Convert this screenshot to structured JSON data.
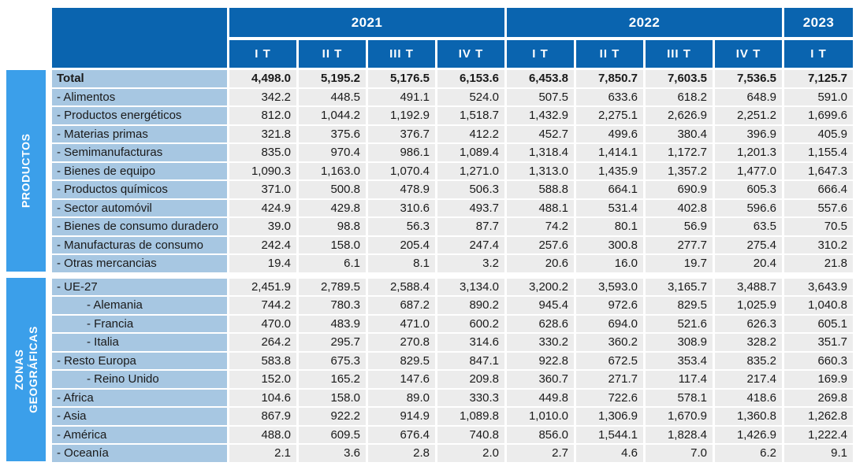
{
  "colors": {
    "header_bg": "#0a64af",
    "sidebar_bg": "#3b9fea",
    "label_bg": "#a7c7e2",
    "cell_bg": "#ececec",
    "text": "#1a1a1a",
    "header_text": "#ffffff"
  },
  "table": {
    "header": {
      "corner_label": "",
      "year_groups": [
        {
          "label": "2021",
          "span": 4
        },
        {
          "label": "2022",
          "span": 4
        },
        {
          "label": "2023",
          "span": 1
        }
      ],
      "quarters": [
        "I T",
        "II T",
        "III T",
        "IV T",
        "I T",
        "II T",
        "III T",
        "IV T",
        "I T"
      ]
    },
    "sections": [
      {
        "name": "PRODUCTOS",
        "rows": [
          {
            "label": "Total",
            "bold": true,
            "indent": 0,
            "values": [
              "4,498.0",
              "5,195.2",
              "5,176.5",
              "6,153.6",
              "6,453.8",
              "7,850.7",
              "7,603.5",
              "7,536.5",
              "7,125.7"
            ]
          },
          {
            "label": "- Alimentos",
            "bold": false,
            "indent": 1,
            "values": [
              "342.2",
              "448.5",
              "491.1",
              "524.0",
              "507.5",
              "633.6",
              "618.2",
              "648.9",
              "591.0"
            ]
          },
          {
            "label": "- Productos energéticos",
            "bold": false,
            "indent": 1,
            "values": [
              "812.0",
              "1,044.2",
              "1,192.9",
              "1,518.7",
              "1,432.9",
              "2,275.1",
              "2,626.9",
              "2,251.2",
              "1,699.6"
            ]
          },
          {
            "label": "- Materias primas",
            "bold": false,
            "indent": 1,
            "values": [
              "321.8",
              "375.6",
              "376.7",
              "412.2",
              "452.7",
              "499.6",
              "380.4",
              "396.9",
              "405.9"
            ]
          },
          {
            "label": "- Semimanufacturas",
            "bold": false,
            "indent": 1,
            "values": [
              "835.0",
              "970.4",
              "986.1",
              "1,089.4",
              "1,318.4",
              "1,414.1",
              "1,172.7",
              "1,201.3",
              "1,155.4"
            ]
          },
          {
            "label": "- Bienes de equipo",
            "bold": false,
            "indent": 1,
            "values": [
              "1,090.3",
              "1,163.0",
              "1,070.4",
              "1,271.0",
              "1,313.0",
              "1,435.9",
              "1,357.2",
              "1,477.0",
              "1,647.3"
            ]
          },
          {
            "label": "- Productos químicos",
            "bold": false,
            "indent": 1,
            "values": [
              "371.0",
              "500.8",
              "478.9",
              "506.3",
              "588.8",
              "664.1",
              "690.9",
              "605.3",
              "666.4"
            ]
          },
          {
            "label": "- Sector automóvil",
            "bold": false,
            "indent": 1,
            "values": [
              "424.9",
              "429.8",
              "310.6",
              "493.7",
              "488.1",
              "531.4",
              "402.8",
              "596.6",
              "557.6"
            ]
          },
          {
            "label": "- Bienes de consumo duradero",
            "bold": false,
            "indent": 1,
            "values": [
              "39.0",
              "98.8",
              "56.3",
              "87.7",
              "74.2",
              "80.1",
              "56.9",
              "63.5",
              "70.5"
            ]
          },
          {
            "label": "- Manufacturas de consumo",
            "bold": false,
            "indent": 1,
            "values": [
              "242.4",
              "158.0",
              "205.4",
              "247.4",
              "257.6",
              "300.8",
              "277.7",
              "275.4",
              "310.2"
            ]
          },
          {
            "label": "- Otras mercancias",
            "bold": false,
            "indent": 1,
            "values": [
              "19.4",
              "6.1",
              "8.1",
              "3.2",
              "20.6",
              "16.0",
              "19.7",
              "20.4",
              "21.8"
            ]
          }
        ]
      },
      {
        "name": "ZONAS\nGEOGRÁFICAS",
        "rows": [
          {
            "label": "- UE-27",
            "bold": false,
            "indent": 1,
            "values": [
              "2,451.9",
              "2,789.5",
              "2,588.4",
              "3,134.0",
              "3,200.2",
              "3,593.0",
              "3,165.7",
              "3,488.7",
              "3,643.9"
            ]
          },
          {
            "label": "- Alemania",
            "bold": false,
            "indent": 2,
            "values": [
              "744.2",
              "780.3",
              "687.2",
              "890.2",
              "945.4",
              "972.6",
              "829.5",
              "1,025.9",
              "1,040.8"
            ]
          },
          {
            "label": "- Francia",
            "bold": false,
            "indent": 2,
            "values": [
              "470.0",
              "483.9",
              "471.0",
              "600.2",
              "628.6",
              "694.0",
              "521.6",
              "626.3",
              "605.1"
            ]
          },
          {
            "label": "- Italia",
            "bold": false,
            "indent": 2,
            "values": [
              "264.2",
              "295.7",
              "270.8",
              "314.6",
              "330.2",
              "360.2",
              "308.9",
              "328.2",
              "351.7"
            ]
          },
          {
            "label": "- Resto Europa",
            "bold": false,
            "indent": 1,
            "values": [
              "583.8",
              "675.3",
              "829.5",
              "847.1",
              "922.8",
              "672.5",
              "353.4",
              "835.2",
              "660.3"
            ]
          },
          {
            "label": "- Reino Unido",
            "bold": false,
            "indent": 2,
            "values": [
              "152.0",
              "165.2",
              "147.6",
              "209.8",
              "360.7",
              "271.7",
              "117.4",
              "217.4",
              "169.9"
            ]
          },
          {
            "label": "- Africa",
            "bold": false,
            "indent": 1,
            "values": [
              "104.6",
              "158.0",
              "89.0",
              "330.3",
              "449.8",
              "722.6",
              "578.1",
              "418.6",
              "269.8"
            ]
          },
          {
            "label": "- Asia",
            "bold": false,
            "indent": 1,
            "values": [
              "867.9",
              "922.2",
              "914.9",
              "1,089.8",
              "1,010.0",
              "1,306.9",
              "1,670.9",
              "1,360.8",
              "1,262.8"
            ]
          },
          {
            "label": "- América",
            "bold": false,
            "indent": 1,
            "values": [
              "488.0",
              "609.5",
              "676.4",
              "740.8",
              "856.0",
              "1,544.1",
              "1,828.4",
              "1,426.9",
              "1,222.4"
            ]
          },
          {
            "label": "- Oceanía",
            "bold": false,
            "indent": 1,
            "values": [
              "2.1",
              "3.6",
              "2.8",
              "2.0",
              "2.7",
              "4.6",
              "7.0",
              "6.2",
              "9.1"
            ]
          }
        ]
      }
    ]
  }
}
